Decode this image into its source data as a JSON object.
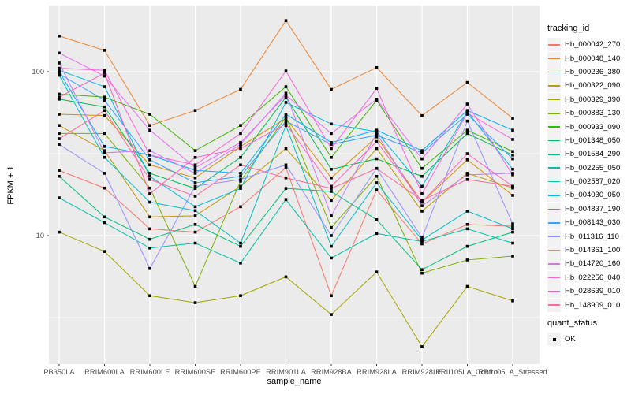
{
  "figure": {
    "background": "#FFFFFF",
    "panel_background": "#EBEBEB",
    "gridline_color": "#FFFFFF",
    "tick_label_color": "#4D4D4D",
    "point_color": "#000000"
  },
  "legends": {
    "tracking": {
      "title": "tracking_id"
    },
    "quant": {
      "title": "quant_status",
      "ok_label": "OK",
      "marker": "black-square-point"
    }
  },
  "chart_data": {
    "type": "line",
    "title": "",
    "xlabel": "sample_name",
    "ylabel": "FPKM + 1",
    "y_scale": "log10",
    "ylim": [
      1.6,
      260
    ],
    "y_major_ticks": [
      100,
      10
    ],
    "y_tick_labels": [
      "100",
      "10"
    ],
    "y_minor_gridlines": [
      31.62,
      3.162
    ],
    "grid": true,
    "legend_position": "right",
    "point_marker": "filled-square-black",
    "categories": [
      "PB350LA",
      "RRIM600LA",
      "RRIM600LE",
      "RRIM600SE",
      "RRIM600PE",
      "RRIM901LA",
      "RRIM928BA",
      "RRIM928LA",
      "RRIM928LE",
      "RRII105LA_Control",
      "RRII105LA_Stressed"
    ],
    "series": [
      {
        "name": "Hb_000042_270",
        "color": "#F8766D",
        "values": [
          25,
          19.5,
          11,
          10.5,
          15,
          26,
          4.3,
          19,
          8.9,
          11.7,
          11.4
        ]
      },
      {
        "name": "Hb_000048_140",
        "color": "#EA8331",
        "values": [
          165,
          135,
          47,
          58,
          78,
          205,
          78,
          106,
          54,
          86,
          52
        ]
      },
      {
        "name": "Hb_000236_380",
        "color": "#D89000",
        "values": [
          55,
          54,
          27,
          22.5,
          35,
          52,
          22.5,
          40,
          16,
          29,
          17.6
        ]
      },
      {
        "name": "Hb_000322_090",
        "color": "#C09B00",
        "values": [
          47,
          33,
          13,
          13.2,
          20,
          34,
          16.4,
          34,
          14.1,
          24,
          19.5
        ]
      },
      {
        "name": "Hb_000329_390",
        "color": "#A3A500",
        "values": [
          10.5,
          8,
          4.3,
          3.9,
          4.3,
          5.6,
          3.3,
          6,
          2.1,
          4.9,
          4
        ]
      },
      {
        "name": "Hb_000883_130",
        "color": "#7CAE00",
        "values": [
          42,
          42,
          19.5,
          4.9,
          21.5,
          53,
          11.2,
          23,
          5.9,
          7.1,
          7.5
        ]
      },
      {
        "name": "Hb_000933_090",
        "color": "#39B600",
        "values": [
          73,
          70,
          55,
          33,
          47,
          81,
          30,
          67,
          25.7,
          44,
          32.6
        ]
      },
      {
        "name": "Hb_001348_050",
        "color": "#00BB4E",
        "values": [
          68,
          61,
          24,
          19.4,
          30,
          70,
          25.4,
          29.4,
          23,
          42,
          31
        ]
      },
      {
        "name": "Hb_001584_290",
        "color": "#00BF7D",
        "values": [
          23,
          13,
          9.5,
          11.7,
          8.6,
          19.4,
          18.6,
          12.5,
          6.2,
          8.6,
          10.5
        ]
      },
      {
        "name": "Hb_002255_050",
        "color": "#00C1A3",
        "values": [
          17,
          12,
          8.4,
          9,
          6.8,
          16.6,
          7.3,
          10.3,
          9.2,
          11,
          9
        ]
      },
      {
        "name": "Hb_002587_020",
        "color": "#00BFC4",
        "values": [
          95,
          30,
          16,
          14.2,
          9,
          47,
          8.6,
          21,
          9.4,
          14.1,
          11
        ]
      },
      {
        "name": "Hb_004030_050",
        "color": "#00BAE0",
        "values": [
          102,
          81,
          23,
          15,
          19.4,
          65,
          48,
          43,
          20,
          57,
          25.4
        ]
      },
      {
        "name": "Hb_004837_190",
        "color": "#00B0F6",
        "values": [
          100,
          35,
          31,
          25,
          24,
          55,
          37,
          44,
          33,
          58,
          44
        ]
      },
      {
        "name": "Hb_008143_030",
        "color": "#35A2FF",
        "values": [
          97,
          67,
          29,
          21,
          23,
          50,
          36,
          41,
          32,
          55,
          29.4
        ]
      },
      {
        "name": "Hb_011316_110",
        "color": "#9590FF",
        "values": [
          36,
          24,
          6.3,
          20,
          22,
          27,
          10,
          25.7,
          9.7,
          50,
          11.8
        ]
      },
      {
        "name": "Hb_014361_100",
        "color": "#C77CFF",
        "values": [
          113,
          32,
          33,
          24,
          36,
          74,
          13.2,
          42,
          15.2,
          23.5,
          24
        ]
      },
      {
        "name": "Hb_014720_160",
        "color": "#E76BF3",
        "values": [
          130,
          94,
          44,
          26,
          37,
          72,
          42,
          68,
          29.4,
          63.5,
          23.5
        ]
      },
      {
        "name": "Hb_022256_040",
        "color": "#FA62DB",
        "values": [
          105,
          102,
          31,
          27,
          42,
          101,
          34,
          79,
          18,
          56,
          38.6
        ]
      },
      {
        "name": "Hb_028639_010",
        "color": "#FF62BC",
        "values": [
          70,
          98,
          18,
          30,
          34,
          48,
          20,
          37.5,
          16,
          31.6,
          20
        ]
      },
      {
        "name": "Hb_148909_010",
        "color": "#FF6A98",
        "values": [
          39,
          58,
          22,
          17.4,
          27,
          22.5,
          19.4,
          25.7,
          16.4,
          22,
          20
        ]
      }
    ]
  }
}
